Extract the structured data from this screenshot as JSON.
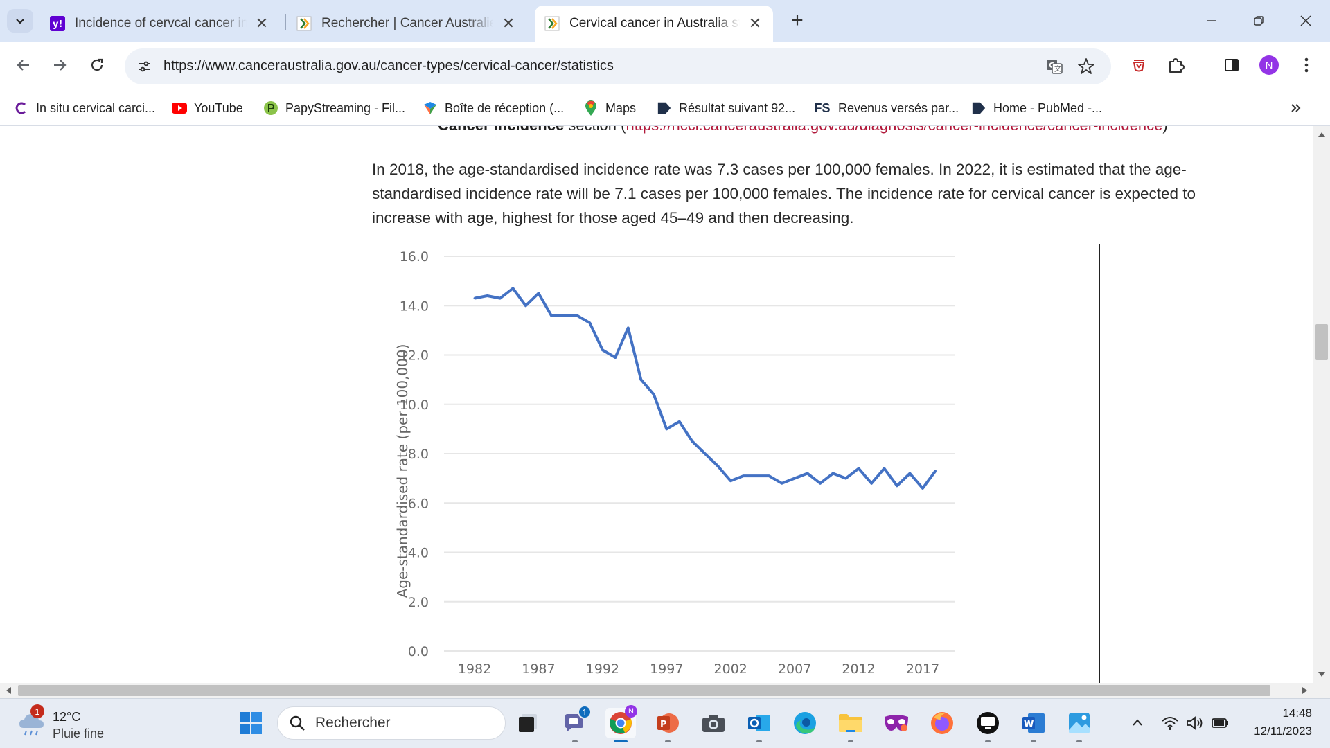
{
  "browser": {
    "tabs": [
      {
        "title": "Incidence of cervcal cancer in A",
        "favicon": "yahoo-icon",
        "active": false
      },
      {
        "title": "Rechercher | Cancer Australie",
        "favicon": "cancer-australia-icon",
        "active": false
      },
      {
        "title": "Cervical cancer in Australia stati",
        "favicon": "cancer-australia-icon",
        "active": true
      }
    ],
    "new_tab_symbol": "+",
    "url": "https://www.canceraustralia.gov.au/cancer-types/cervical-cancer/statistics",
    "profile_initial": "N"
  },
  "bookmarks": [
    {
      "label": "In situ cervical carci...",
      "icon": "c-icon"
    },
    {
      "label": "YouTube",
      "icon": "youtube-icon"
    },
    {
      "label": "PapyStreaming - Fil...",
      "icon": "papystreaming-icon"
    },
    {
      "label": "Boîte de réception (...",
      "icon": "mail-icon"
    },
    {
      "label": "Maps",
      "icon": "maps-icon"
    },
    {
      "label": "Résultat suivant 92...",
      "icon": "pubmed-icon"
    },
    {
      "label": "Revenus versés par...",
      "icon": "fs-icon",
      "icon_text": "FS"
    },
    {
      "label": "Home - PubMed -...",
      "icon": "pubmed-icon"
    }
  ],
  "page": {
    "cut_line_bold": "Cancer incidence",
    "cut_line_text": " section (",
    "cut_line_link": "https://ncci.canceraustralia.gov.au/diagnosis/cancer-incidence/cancer-incidence",
    "cut_line_end": ")",
    "paragraph": "In 2018, the age-standardised incidence rate was 7.3 cases per 100,000 females. In 2022, it is estimated that the age-standardised incidence rate will be 7.1 cases per 100,000 females. The incidence rate for cervical cancer is expected to increase with age, highest for those aged 45–49 and then decreasing."
  },
  "chart_data": {
    "type": "line",
    "title": "",
    "xlabel": "",
    "ylabel": "Age-standardised rate (per 100,000)",
    "ylim": [
      0,
      16
    ],
    "yticks": [
      "0.0",
      "2.0",
      "4.0",
      "6.0",
      "8.0",
      "10.0",
      "12.0",
      "14.0",
      "16.0"
    ],
    "xticks": [
      "1982",
      "1987",
      "1992",
      "1997",
      "2002",
      "2007",
      "2012",
      "2017"
    ],
    "xlim": [
      1982,
      2018
    ],
    "grid": true,
    "color": "#4472c4",
    "series": [
      {
        "x": [
          1982,
          1983,
          1984,
          1985,
          1986,
          1987,
          1988,
          1989,
          1990,
          1991,
          1992,
          1993,
          1994,
          1995,
          1996,
          1997,
          1998,
          1999,
          2000,
          2001,
          2002,
          2003,
          2004,
          2005,
          2006,
          2007,
          2008,
          2009,
          2010,
          2011,
          2012,
          2013,
          2014,
          2015,
          2016,
          2017,
          2018
        ],
        "values": [
          14.3,
          14.4,
          14.3,
          14.7,
          14.0,
          14.5,
          13.6,
          13.6,
          13.6,
          13.3,
          12.2,
          11.9,
          13.1,
          11.0,
          10.4,
          9.0,
          9.3,
          8.5,
          8.0,
          7.5,
          6.9,
          7.1,
          7.1,
          7.1,
          6.8,
          7.0,
          7.2,
          6.8,
          7.2,
          7.0,
          7.4,
          6.8,
          7.4,
          6.7,
          7.2,
          6.6,
          7.3
        ]
      }
    ]
  },
  "taskbar": {
    "weather_temp": "12°C",
    "weather_desc": "Pluie fine",
    "weather_badge": "1",
    "search_placeholder": "Rechercher",
    "teams_badge": "1",
    "chrome_badge": "N",
    "time": "14:48",
    "date": "12/11/2023"
  }
}
